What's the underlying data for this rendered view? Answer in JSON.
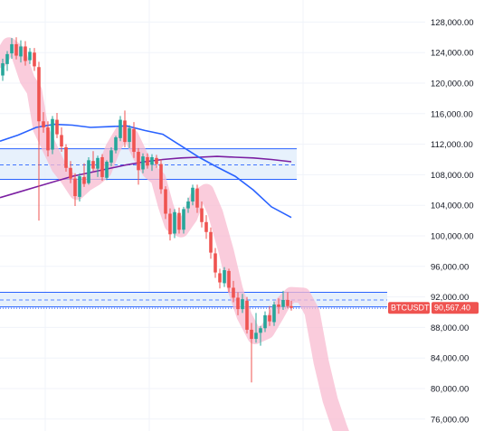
{
  "chart_data": {
    "type": "candlestick",
    "symbol": "BTCUSDT",
    "last_price": 90567.4,
    "last_price_label": "90,567.40",
    "y_axis": {
      "min": 74000,
      "max": 130000,
      "ticks": [
        76000,
        80000,
        84000,
        88000,
        92000,
        96000,
        100000,
        104000,
        108000,
        112000,
        116000,
        120000,
        124000,
        128000
      ],
      "tick_labels": [
        "76,000.00",
        "80,000.00",
        "84,000.00",
        "88,000.00",
        "92,000.00",
        "96,000.00",
        "100,000.00",
        "104,000.00",
        "108,000.00",
        "112,000.00",
        "116,000.00",
        "120,000.00",
        "124,000.00",
        "128,000.00"
      ]
    },
    "grid": true,
    "zones": [
      {
        "low": 107400,
        "high": 111400,
        "mid": 109300
      },
      {
        "low": 90700,
        "high": 92600,
        "mid": 91600
      }
    ],
    "lower_zone_line": 90700,
    "ma_fast": [
      [
        0,
        112400
      ],
      [
        20,
        113200
      ],
      [
        40,
        114200
      ],
      [
        60,
        114600
      ],
      [
        80,
        114500
      ],
      [
        100,
        114200
      ],
      [
        120,
        114300
      ],
      [
        140,
        114400
      ],
      [
        160,
        113800
      ],
      [
        180,
        113300
      ],
      [
        200,
        111800
      ],
      [
        220,
        110300
      ],
      [
        240,
        109000
      ],
      [
        260,
        107800
      ],
      [
        280,
        106000
      ],
      [
        300,
        103800
      ],
      [
        322,
        102400
      ]
    ],
    "ma_slow": [
      [
        0,
        105000
      ],
      [
        20,
        105700
      ],
      [
        40,
        106400
      ],
      [
        60,
        107100
      ],
      [
        80,
        107800
      ],
      [
        100,
        108300
      ],
      [
        120,
        108800
      ],
      [
        140,
        109300
      ],
      [
        160,
        109700
      ],
      [
        180,
        110000
      ],
      [
        200,
        110200
      ],
      [
        220,
        110300
      ],
      [
        240,
        110400
      ],
      [
        260,
        110300
      ],
      [
        280,
        110200
      ],
      [
        300,
        110000
      ],
      [
        322,
        109700
      ]
    ],
    "projection_path": [
      [
        0,
        123000
      ],
      [
        10,
        125000
      ],
      [
        20,
        124000
      ],
      [
        30,
        120500
      ],
      [
        38,
        119000
      ],
      [
        45,
        114000
      ],
      [
        55,
        111500
      ],
      [
        65,
        109000
      ],
      [
        75,
        107500
      ],
      [
        85,
        105700
      ],
      [
        95,
        106800
      ],
      [
        105,
        107500
      ],
      [
        115,
        108500
      ],
      [
        125,
        111500
      ],
      [
        135,
        113500
      ],
      [
        145,
        113000
      ],
      [
        155,
        110500
      ],
      [
        165,
        108500
      ],
      [
        175,
        107500
      ],
      [
        183,
        104000
      ],
      [
        190,
        101500
      ],
      [
        200,
        100800
      ],
      [
        210,
        102500
      ],
      [
        218,
        105000
      ],
      [
        228,
        105800
      ],
      [
        238,
        103000
      ],
      [
        250,
        98000
      ],
      [
        260,
        93000
      ],
      [
        270,
        89500
      ],
      [
        282,
        86800
      ],
      [
        295,
        87500
      ],
      [
        305,
        89500
      ],
      [
        313,
        91200
      ],
      [
        322,
        92300
      ],
      [
        335,
        92200
      ],
      [
        345,
        90000
      ],
      [
        355,
        83500
      ],
      [
        365,
        78500
      ],
      [
        375,
        75000
      ],
      [
        383,
        72500
      ]
    ],
    "candles": [
      [
        3,
        121000,
        123200,
        120300,
        122600
      ],
      [
        8,
        122500,
        124200,
        121600,
        123800
      ],
      [
        13,
        123900,
        125900,
        123200,
        125100
      ],
      [
        18,
        125100,
        126000,
        123100,
        123600
      ],
      [
        23,
        123500,
        125600,
        122700,
        124800
      ],
      [
        28,
        124800,
        125500,
        122300,
        122900
      ],
      [
        33,
        123000,
        124600,
        122500,
        124100
      ],
      [
        38,
        124000,
        124600,
        121600,
        122200
      ],
      [
        43,
        122100,
        122800,
        102000,
        115000
      ],
      [
        48,
        115000,
        116200,
        113500,
        114200
      ],
      [
        53,
        114200,
        115000,
        110400,
        111200
      ],
      [
        58,
        111300,
        115700,
        110700,
        115300
      ],
      [
        63,
        115200,
        116100,
        112800,
        113300
      ],
      [
        68,
        113200,
        114200,
        111000,
        111700
      ],
      [
        73,
        111600,
        112000,
        108400,
        108900
      ],
      [
        78,
        108900,
        109800,
        106900,
        107500
      ],
      [
        83,
        107500,
        108200,
        103900,
        105200
      ],
      [
        88,
        105100,
        108200,
        104500,
        107800
      ],
      [
        93,
        107700,
        109500,
        106400,
        106800
      ],
      [
        98,
        106900,
        110300,
        106700,
        109900
      ],
      [
        103,
        109800,
        111100,
        108500,
        108800
      ],
      [
        108,
        108800,
        110500,
        107700,
        110200
      ],
      [
        113,
        110300,
        110700,
        107200,
        107700
      ],
      [
        118,
        107600,
        109900,
        107300,
        109700
      ],
      [
        123,
        109600,
        111600,
        109100,
        111200
      ],
      [
        128,
        111200,
        113100,
        110800,
        112900
      ],
      [
        133,
        112800,
        115700,
        112400,
        115200
      ],
      [
        138,
        115100,
        116400,
        111600,
        112300
      ],
      [
        143,
        112300,
        114500,
        111500,
        114100
      ],
      [
        148,
        114000,
        114900,
        110200,
        111000
      ],
      [
        153,
        111000,
        111500,
        106700,
        108600
      ],
      [
        158,
        108700,
        110800,
        108200,
        110400
      ],
      [
        163,
        110300,
        110800,
        108800,
        109200
      ],
      [
        168,
        109300,
        110700,
        108500,
        110300
      ],
      [
        173,
        110200,
        110600,
        108900,
        109400
      ],
      [
        178,
        109400,
        110000,
        105500,
        106100
      ],
      [
        183,
        106100,
        106500,
        102200,
        102900
      ],
      [
        188,
        102900,
        103600,
        99400,
        100200
      ],
      [
        193,
        100300,
        103500,
        99700,
        103100
      ],
      [
        198,
        103000,
        103700,
        100300,
        100800
      ],
      [
        203,
        100800,
        103800,
        100300,
        103500
      ],
      [
        208,
        103600,
        105000,
        103000,
        104500
      ],
      [
        213,
        104500,
        106700,
        104000,
        106300
      ],
      [
        218,
        106200,
        106700,
        103000,
        103700
      ],
      [
        223,
        103600,
        104500,
        101100,
        101800
      ],
      [
        228,
        101800,
        102700,
        99600,
        100500
      ],
      [
        233,
        100500,
        101100,
        97000,
        97800
      ],
      [
        238,
        97700,
        98400,
        94500,
        95200
      ],
      [
        243,
        95100,
        95700,
        93100,
        93900
      ],
      [
        248,
        93800,
        95900,
        93300,
        95500
      ],
      [
        253,
        95400,
        95700,
        92600,
        93200
      ],
      [
        258,
        93200,
        94100,
        91300,
        91900
      ],
      [
        263,
        91900,
        92600,
        89600,
        90400
      ],
      [
        268,
        90400,
        92400,
        89900,
        91700
      ],
      [
        273,
        91500,
        92000,
        87200,
        87700
      ],
      [
        278,
        87700,
        88600,
        80800,
        86500
      ],
      [
        283,
        86500,
        89900,
        86000,
        87300
      ],
      [
        288,
        87300,
        88200,
        85600,
        87900
      ],
      [
        293,
        87900,
        90100,
        87400,
        89600
      ],
      [
        298,
        89600,
        90800,
        88200,
        88800
      ],
      [
        303,
        88700,
        91400,
        88200,
        91000
      ],
      [
        308,
        91000,
        91800,
        89800,
        90700
      ],
      [
        313,
        90700,
        92800,
        90300,
        91600
      ],
      [
        318,
        91600,
        92600,
        90500,
        90800
      ],
      [
        322,
        90800,
        91500,
        90200,
        90567
      ]
    ]
  },
  "colors": {
    "up": "#26a69a",
    "down": "#ef5350",
    "zone_fill": "#e3eefb",
    "zone_border": "#2962ff",
    "ma_fast": "#2962ff",
    "ma_slow": "#7b1fa2",
    "projection": "#f8bbd0",
    "grid": "#f0f3fa",
    "label_bg": "#ef5350"
  }
}
